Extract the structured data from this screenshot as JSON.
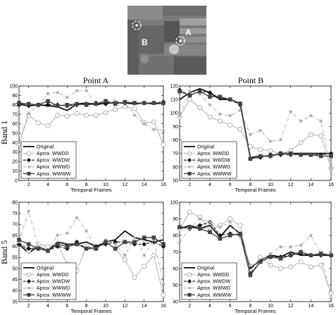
{
  "figure": {
    "column_titles": [
      "Point A",
      "Point B"
    ],
    "row_titles": [
      "Band 1",
      "Band 5"
    ],
    "thumbnail_labels": [
      "B",
      "A"
    ]
  },
  "colors": {
    "Original": "#111111",
    "Aprox. WWDD": "#a8a8a8",
    "Aprox. WWDW": "#111111",
    "Aprox. WWWD": "#a8a8a8",
    "Aprox. WWWW": "#444444",
    "thumb_bg": "#7d7d7d"
  },
  "chart_data": [
    {
      "type": "line",
      "id": "band1-pointA",
      "xlabel": "Temporal Frames",
      "ylabel": "",
      "xlim": [
        1,
        16
      ],
      "ylim": [
        0,
        100
      ],
      "xticks": [
        2,
        4,
        6,
        8,
        10,
        12,
        14,
        16
      ],
      "yticks": [
        0,
        10,
        20,
        30,
        40,
        50,
        60,
        70,
        80,
        90,
        100
      ],
      "legend_placement": "bottom-left",
      "x": [
        1,
        2,
        3,
        4,
        5,
        6,
        7,
        8,
        9,
        10,
        11,
        12,
        13,
        14,
        15,
        16
      ],
      "series": [
        {
          "name": "Original",
          "style": "solid-thick",
          "values": [
            81,
            79,
            80,
            79,
            78,
            74,
            81,
            82,
            80,
            82,
            82,
            82,
            81,
            82,
            81,
            82
          ]
        },
        {
          "name": "Aprox. WWDD",
          "style": "solid-circle",
          "values": [
            39,
            69,
            61,
            58,
            69,
            68,
            71,
            69,
            69,
            72,
            75,
            78,
            76,
            61,
            62,
            38
          ]
        },
        {
          "name": "Aprox. WWDW",
          "style": "dashed-diamond",
          "values": [
            80,
            79,
            80,
            80,
            80,
            79,
            80,
            81,
            82,
            81,
            83,
            82,
            82,
            82,
            82,
            83
          ]
        },
        {
          "name": "Aprox. WWWD",
          "style": "dashdot-star",
          "values": [
            40,
            71,
            79,
            92,
            93,
            88,
            95,
            95,
            81,
            85,
            84,
            82,
            69,
            60,
            54,
            53
          ]
        },
        {
          "name": "Aprox. WWWW",
          "style": "solid-square",
          "values": [
            82,
            81,
            80,
            84,
            79,
            80,
            81,
            80,
            81,
            84,
            81,
            83,
            82,
            82,
            82,
            82
          ]
        }
      ]
    },
    {
      "type": "line",
      "id": "band1-pointB",
      "xlabel": "Temporal Frames",
      "ylabel": "",
      "xlim": [
        1,
        16
      ],
      "ylim": [
        50,
        120
      ],
      "xticks": [
        2,
        4,
        6,
        8,
        10,
        12,
        14,
        16
      ],
      "yticks": [
        50,
        60,
        70,
        80,
        90,
        100,
        110,
        120
      ],
      "legend_placement": "bottom-left",
      "x": [
        1,
        2,
        3,
        4,
        5,
        6,
        7,
        8,
        9,
        10,
        11,
        12,
        13,
        14,
        15,
        16
      ],
      "series": [
        {
          "name": "Original",
          "style": "solid-thick",
          "values": [
            110,
            115,
            118,
            115,
            110,
            110,
            107,
            67,
            68,
            68,
            70,
            70,
            70,
            70,
            70,
            70
          ]
        },
        {
          "name": "Aprox. WWDD",
          "style": "solid-circle",
          "values": [
            97,
            110,
            104,
            97,
            94,
            91,
            88,
            75,
            73,
            72,
            70,
            72,
            78,
            84,
            83,
            59
          ]
        },
        {
          "name": "Aprox. WWDW",
          "style": "dashed-diamond",
          "values": [
            117,
            113,
            116,
            115,
            111,
            110,
            106,
            66,
            67,
            69,
            69,
            69,
            69,
            69,
            69,
            70
          ]
        },
        {
          "name": "Aprox. WWWD",
          "style": "dashdot-star",
          "values": [
            98,
            116,
            114,
            106,
            99,
            98,
            102,
            84,
            87,
            79,
            80,
            101,
            94,
            98,
            94,
            59
          ]
        },
        {
          "name": "Aprox. WWWW",
          "style": "solid-square",
          "values": [
            116,
            113,
            116,
            112,
            112,
            110,
            107,
            66,
            68,
            68,
            70,
            70,
            69,
            69,
            68,
            68
          ]
        }
      ]
    },
    {
      "type": "line",
      "id": "band5-pointA",
      "xlabel": "Temporal Frames",
      "ylabel": "",
      "xlim": [
        1,
        16
      ],
      "ylim": [
        35,
        80
      ],
      "xticks": [
        2,
        4,
        6,
        8,
        10,
        12,
        14,
        16
      ],
      "yticks": [
        35,
        40,
        45,
        50,
        55,
        60,
        65,
        70,
        75,
        80
      ],
      "legend_placement": "bottom-left",
      "x": [
        1,
        2,
        3,
        4,
        5,
        6,
        7,
        8,
        9,
        10,
        11,
        12,
        13,
        14,
        15,
        16
      ],
      "series": [
        {
          "name": "Original",
          "style": "solid-thick",
          "values": [
            61,
            57,
            60,
            58,
            62,
            61,
            61,
            62,
            60,
            62,
            63,
            67,
            64,
            63,
            62,
            63
          ]
        },
        {
          "name": "Aprox. WWDD",
          "style": "solid-circle",
          "values": [
            62,
            58,
            61,
            60,
            61,
            52,
            49,
            60,
            59,
            62,
            59,
            54,
            46,
            51,
            56,
            38
          ]
        },
        {
          "name": "Aprox. WWDW",
          "style": "dashed-diamond",
          "values": [
            61,
            59,
            59,
            58,
            60,
            59,
            62,
            59,
            60,
            61,
            62,
            62,
            61,
            61,
            62,
            60
          ]
        },
        {
          "name": "Aprox. WWWD",
          "style": "dashdot-star",
          "values": [
            62,
            76,
            60,
            58,
            65,
            66,
            73,
            67,
            59,
            63,
            61,
            56,
            64,
            56,
            63,
            43
          ]
        },
        {
          "name": "Aprox. WWWW",
          "style": "solid-square",
          "values": [
            63,
            61,
            59,
            58,
            61,
            60,
            61,
            59,
            59,
            62,
            59,
            62,
            62,
            64,
            64,
            61
          ]
        }
      ]
    },
    {
      "type": "line",
      "id": "band5-pointB",
      "xlabel": "Temporal Frames",
      "ylabel": "",
      "xlim": [
        1,
        16
      ],
      "ylim": [
        40,
        100
      ],
      "xticks": [
        2,
        4,
        6,
        8,
        10,
        12,
        14,
        16
      ],
      "yticks": [
        40,
        50,
        60,
        70,
        80,
        90,
        100
      ],
      "legend_placement": "bottom-left",
      "x": [
        1,
        2,
        3,
        4,
        5,
        6,
        7,
        8,
        9,
        10,
        11,
        12,
        13,
        14,
        15,
        16
      ],
      "series": [
        {
          "name": "Original",
          "style": "solid-thick",
          "values": [
            84,
            86,
            84,
            86,
            79,
            86,
            81,
            60,
            65,
            68,
            67,
            70,
            68,
            68,
            68,
            68
          ]
        },
        {
          "name": "Aprox. WWDD",
          "style": "solid-circle",
          "values": [
            84,
            94,
            91,
            83,
            86,
            90,
            86,
            58,
            67,
            62,
            60,
            61,
            64,
            61,
            62,
            45
          ]
        },
        {
          "name": "Aprox. WWDW",
          "style": "dashed-diamond",
          "values": [
            85,
            84,
            86,
            88,
            80,
            81,
            80,
            57,
            64,
            67,
            67,
            68,
            69,
            68,
            68,
            68
          ]
        },
        {
          "name": "Aprox. WWWD",
          "style": "dashdot-star",
          "values": [
            76,
            84,
            90,
            88,
            85,
            88,
            79,
            62,
            64,
            69,
            73,
            73,
            74,
            80,
            69,
            42
          ]
        },
        {
          "name": "Aprox. WWWW",
          "style": "solid-square",
          "values": [
            85,
            85,
            84,
            82,
            78,
            80,
            81,
            56,
            64,
            67,
            66,
            68,
            70,
            68,
            69,
            68
          ]
        }
      ]
    }
  ]
}
